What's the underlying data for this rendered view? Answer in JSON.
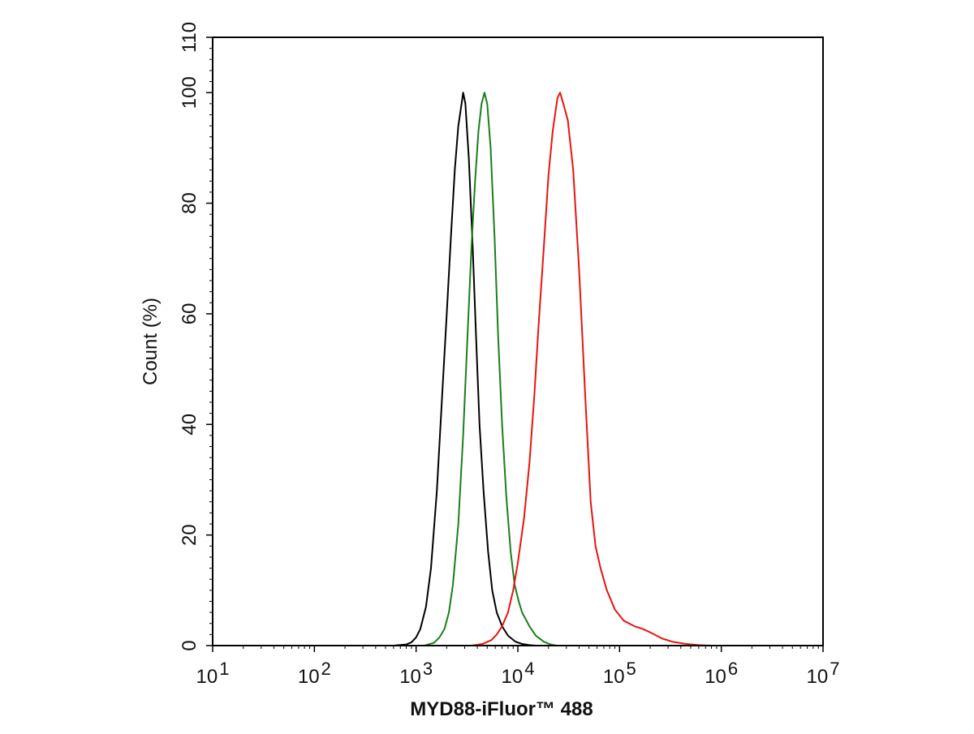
{
  "chart_data": {
    "type": "line",
    "title": "",
    "xlabel": "MYD88-iFluor™ 488",
    "ylabel": "Count  (%)",
    "x_scale": "log",
    "xlim": [
      10,
      10000000
    ],
    "ylim": [
      0,
      110
    ],
    "grid": false,
    "legend": "none",
    "x_ticks": [
      {
        "value": 10,
        "base": "10",
        "exp": "1"
      },
      {
        "value": 100,
        "base": "10",
        "exp": "2"
      },
      {
        "value": 1000,
        "base": "10",
        "exp": "3"
      },
      {
        "value": 10000,
        "base": "10",
        "exp": "4"
      },
      {
        "value": 100000,
        "base": "10",
        "exp": "5"
      },
      {
        "value": 1000000,
        "base": "10",
        "exp": "6"
      },
      {
        "value": 10000000,
        "base": "10",
        "exp": "7"
      }
    ],
    "y_ticks": [
      0,
      20,
      40,
      60,
      80,
      100,
      110
    ],
    "series": [
      {
        "color": "#000000",
        "points": [
          [
            600,
            0
          ],
          [
            800,
            0.2
          ],
          [
            900,
            0.6
          ],
          [
            1000,
            1.5
          ],
          [
            1100,
            3
          ],
          [
            1250,
            7
          ],
          [
            1400,
            14
          ],
          [
            1600,
            28
          ],
          [
            1800,
            45
          ],
          [
            2000,
            60
          ],
          [
            2200,
            74
          ],
          [
            2400,
            86
          ],
          [
            2600,
            94
          ],
          [
            2800,
            98
          ],
          [
            2900,
            100
          ],
          [
            3050,
            98
          ],
          [
            3300,
            88
          ],
          [
            3600,
            72
          ],
          [
            3900,
            55
          ],
          [
            4200,
            40
          ],
          [
            4600,
            28
          ],
          [
            5100,
            17
          ],
          [
            5600,
            10
          ],
          [
            6200,
            6
          ],
          [
            7000,
            3.5
          ],
          [
            8000,
            1.8
          ],
          [
            9500,
            0.7
          ],
          [
            11000,
            0.3
          ],
          [
            13000,
            0.1
          ],
          [
            15000,
            0
          ]
        ]
      },
      {
        "color": "#1a7f1a",
        "points": [
          [
            1200,
            0
          ],
          [
            1500,
            0.5
          ],
          [
            1700,
            1.5
          ],
          [
            1900,
            3
          ],
          [
            2100,
            6
          ],
          [
            2300,
            11
          ],
          [
            2600,
            22
          ],
          [
            2900,
            38
          ],
          [
            3200,
            56
          ],
          [
            3500,
            72
          ],
          [
            3800,
            84
          ],
          [
            4100,
            93
          ],
          [
            4400,
            98
          ],
          [
            4700,
            100
          ],
          [
            5000,
            98
          ],
          [
            5400,
            90
          ],
          [
            5900,
            74
          ],
          [
            6400,
            56
          ],
          [
            7000,
            40
          ],
          [
            7700,
            27
          ],
          [
            8500,
            17
          ],
          [
            9300,
            11
          ],
          [
            10200,
            8
          ],
          [
            11000,
            6
          ],
          [
            13000,
            3.5
          ],
          [
            15000,
            1.8
          ],
          [
            18000,
            0.7
          ],
          [
            21000,
            0.2
          ],
          [
            24000,
            0
          ]
        ]
      },
      {
        "color": "#e8140f",
        "points": [
          [
            3500,
            0
          ],
          [
            4500,
            0.3
          ],
          [
            5500,
            1
          ],
          [
            6200,
            2
          ],
          [
            7000,
            3.5
          ],
          [
            8000,
            6
          ],
          [
            9000,
            10
          ],
          [
            10000,
            15
          ],
          [
            11500,
            23
          ],
          [
            13000,
            33
          ],
          [
            14500,
            45
          ],
          [
            16000,
            58
          ],
          [
            18000,
            72
          ],
          [
            20000,
            85
          ],
          [
            22000,
            93
          ],
          [
            24500,
            99
          ],
          [
            26000,
            100
          ],
          [
            28000,
            98
          ],
          [
            31000,
            95
          ],
          [
            35000,
            86
          ],
          [
            40000,
            68
          ],
          [
            46000,
            45
          ],
          [
            52000,
            26
          ],
          [
            58000,
            18
          ],
          [
            65000,
            14
          ],
          [
            75000,
            10
          ],
          [
            90000,
            6.5
          ],
          [
            110000,
            4.5
          ],
          [
            140000,
            3.5
          ],
          [
            170000,
            3
          ],
          [
            210000,
            2.2
          ],
          [
            260000,
            1.3
          ],
          [
            330000,
            0.7
          ],
          [
            450000,
            0.3
          ],
          [
            600000,
            0.1
          ],
          [
            800000,
            0
          ]
        ]
      }
    ]
  }
}
